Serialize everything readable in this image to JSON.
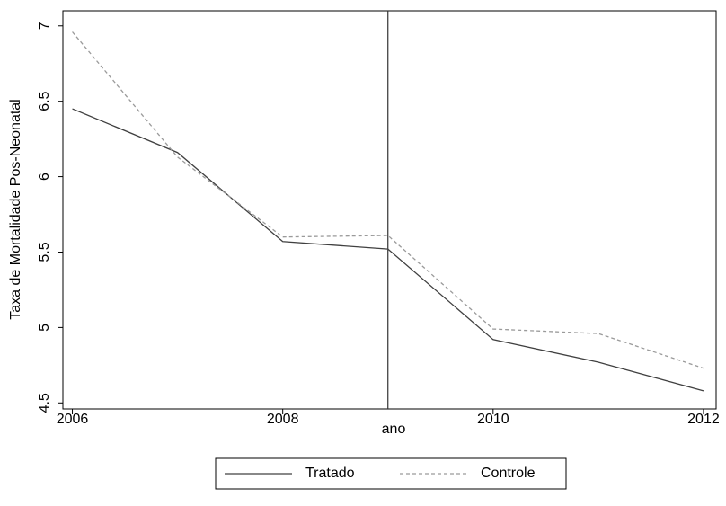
{
  "chart_data": {
    "type": "line",
    "x": [
      2006,
      2007,
      2008,
      2009,
      2010,
      2011,
      2012
    ],
    "series": [
      {
        "name": "Tratado",
        "color": "#404040",
        "dash": "solid",
        "values": [
          6.45,
          6.16,
          5.57,
          5.52,
          4.92,
          4.77,
          4.58
        ]
      },
      {
        "name": "Controle",
        "color": "#9a9a9a",
        "dash": "dashed",
        "values": [
          6.96,
          6.13,
          5.6,
          5.61,
          4.99,
          4.96,
          4.73
        ]
      }
    ],
    "xlabel": "ano",
    "ylabel": "Taxa de Mortalidade Pos-Neonatal",
    "xlim": [
      2005.91,
      2012.12
    ],
    "xticks": [
      2006,
      2008,
      2010,
      2012
    ],
    "ylim": [
      4.46,
      7.1
    ],
    "yticks": [
      4.5,
      5,
      5.5,
      6,
      6.5,
      7
    ],
    "vline": 2009,
    "legend": "bottom"
  }
}
